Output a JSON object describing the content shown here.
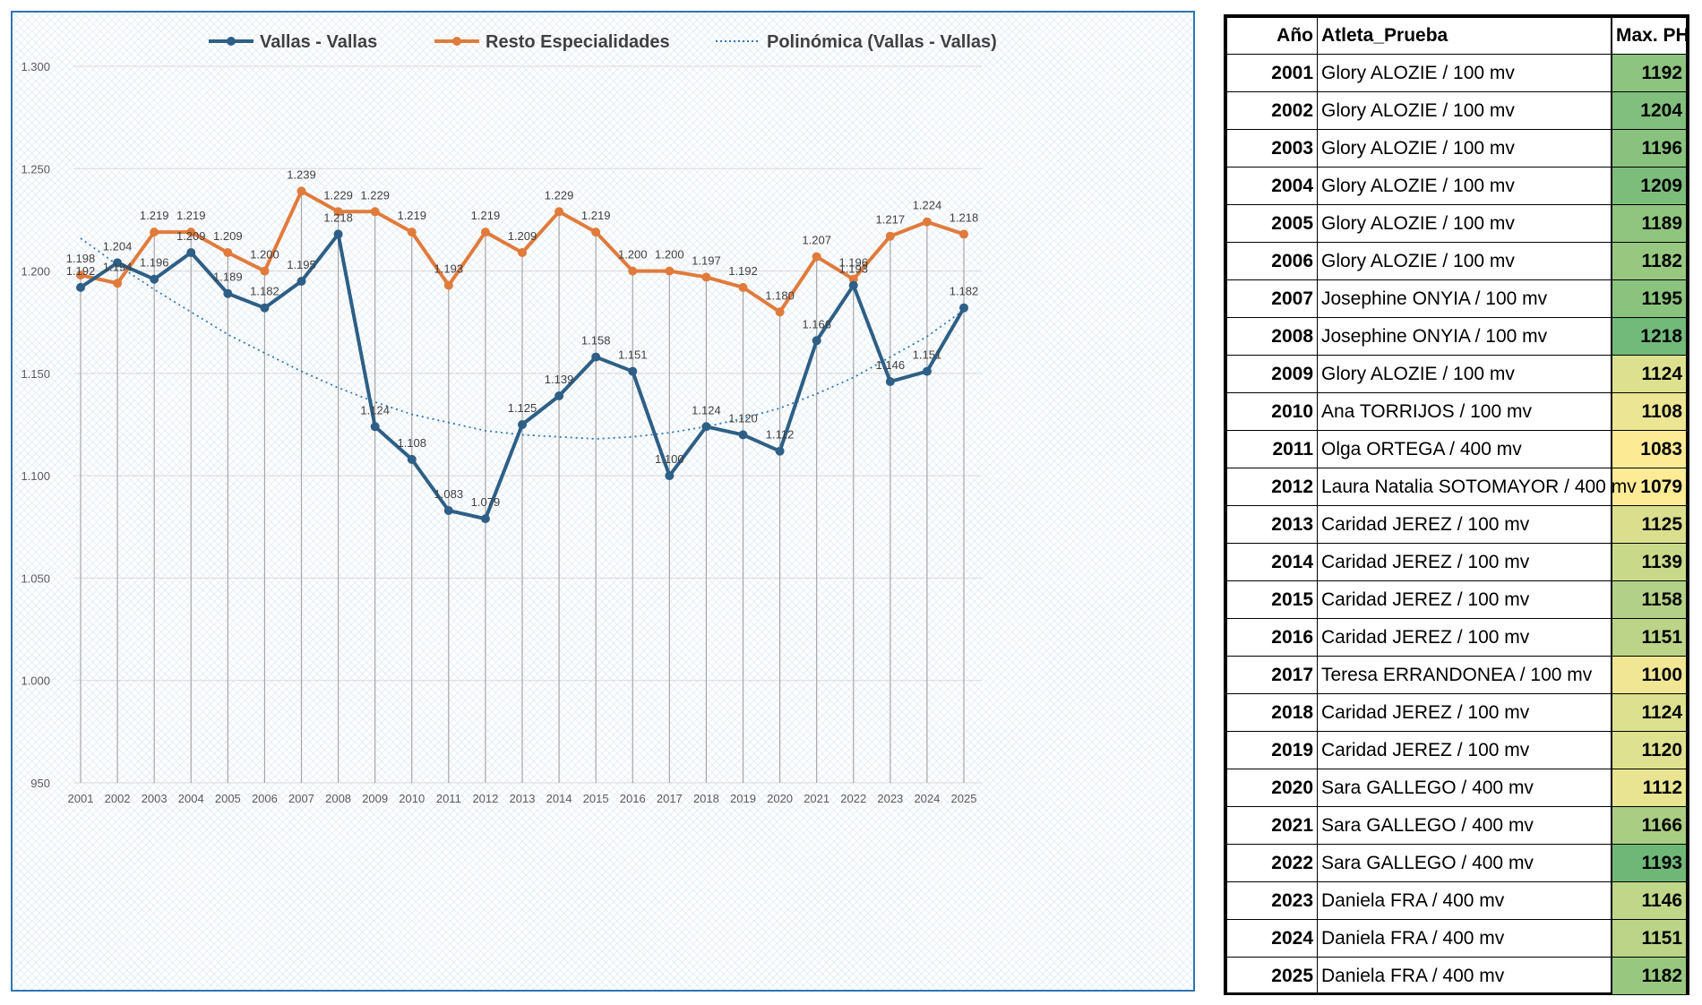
{
  "chart_data": {
    "type": "line",
    "categories": [
      "2001",
      "2002",
      "2003",
      "2004",
      "2005",
      "2006",
      "2007",
      "2008",
      "2009",
      "2010",
      "2011",
      "2012",
      "2013",
      "2014",
      "2015",
      "2016",
      "2017",
      "2018",
      "2019",
      "2020",
      "2021",
      "2022",
      "2023",
      "2024",
      "2025"
    ],
    "series": [
      {
        "name": "Vallas - Vallas",
        "color": "#2e5f86",
        "values": [
          1192,
          1204,
          1196,
          1209,
          1189,
          1182,
          1195,
          1218,
          1124,
          1108,
          1083,
          1079,
          1125,
          1139,
          1158,
          1151,
          1100,
          1124,
          1120,
          1112,
          1166,
          1193,
          1146,
          1151,
          1182
        ],
        "labels": [
          "1.192",
          "1.204",
          "1.196",
          "1.209",
          "1.189",
          "1.182",
          "1.195",
          "1.218",
          "1.124",
          "1.108",
          "1.083",
          "1.079",
          "1.125",
          "1.139",
          "1.158",
          "1.151",
          "1.100",
          "1.124",
          "1.120",
          "1.112",
          "1.166",
          "1.193",
          "1.146",
          "1.151",
          "1.182"
        ]
      },
      {
        "name": "Resto Especialidades",
        "color": "#e07b3c",
        "values": [
          1198,
          1194,
          1219,
          1219,
          1209,
          1200,
          1239,
          1229,
          1229,
          1219,
          1193,
          1219,
          1209,
          1229,
          1219,
          1200,
          1200,
          1197,
          1192,
          1180,
          1207,
          1196,
          1217,
          1224,
          1218
        ],
        "labels": [
          "1.198",
          "1.194",
          "1.219",
          "1.219",
          "1.209",
          "1.200",
          "1.239",
          "1.229",
          "1.229",
          "1.219",
          "1.193",
          "1.219",
          "1.209",
          "1.229",
          "1.219",
          "1.200",
          "1.200",
          "1.197",
          "1.192",
          "1.180",
          "1.207",
          "1.196",
          "1.217",
          "1.224",
          "1.218"
        ]
      },
      {
        "name": "Polinómica (Vallas - Vallas)",
        "type": "trendline",
        "style": "dotted",
        "color": "#2e75b6",
        "values": [
          1216,
          1203,
          1191,
          1180,
          1169,
          1160,
          1151,
          1143,
          1136,
          1130,
          1126,
          1122,
          1120,
          1119,
          1118,
          1119,
          1121,
          1124,
          1128,
          1133,
          1140,
          1148,
          1158,
          1168,
          1181
        ]
      }
    ],
    "y_ticks": [
      950,
      1000,
      1050,
      1100,
      1150,
      1200,
      1250,
      1300
    ],
    "y_tick_labels": [
      "950",
      "1.000",
      "1.050",
      "1.100",
      "1.150",
      "1.200",
      "1.250",
      "1.300"
    ],
    "ylim": [
      950,
      1300
    ],
    "legend_position": "top-center",
    "grid": true
  },
  "table": {
    "headers": {
      "year": "Año",
      "athlete": "Atleta_Prueba",
      "max": "Max. PH"
    },
    "rows": [
      {
        "year": "2001",
        "athlete": "Glory ALOZIE / 100 mv",
        "max": "1192",
        "color": "#8dc47f"
      },
      {
        "year": "2002",
        "athlete": "Glory ALOZIE / 100 mv",
        "max": "1204",
        "color": "#81bf7c"
      },
      {
        "year": "2003",
        "athlete": "Glory ALOZIE / 100 mv",
        "max": "1196",
        "color": "#89c27e"
      },
      {
        "year": "2004",
        "athlete": "Glory ALOZIE / 100 mv",
        "max": "1209",
        "color": "#7cbd7b"
      },
      {
        "year": "2005",
        "athlete": "Glory ALOZIE / 100 mv",
        "max": "1189",
        "color": "#90c57f"
      },
      {
        "year": "2006",
        "athlete": "Glory ALOZIE / 100 mv",
        "max": "1182",
        "color": "#98c880"
      },
      {
        "year": "2007",
        "athlete": "Josephine ONYIA / 100 mv",
        "max": "1195",
        "color": "#8ac37e"
      },
      {
        "year": "2008",
        "athlete": "Josephine ONYIA / 100 mv",
        "max": "1218",
        "color": "#72ba79"
      },
      {
        "year": "2009",
        "athlete": "Glory ALOZIE / 100 mv",
        "max": "1124",
        "color": "#dbe18f"
      },
      {
        "year": "2010",
        "athlete": "Ana TORRIJOS / 100 mv",
        "max": "1108",
        "color": "#ece593"
      },
      {
        "year": "2011",
        "athlete": "Olga ORTEGA / 400 mv",
        "max": "1083",
        "color": "#fdea95"
      },
      {
        "year": "2012",
        "athlete": "Laura Natalia SOTOMAYOR / 400 mv",
        "max": "1079",
        "color": "#feeb96"
      },
      {
        "year": "2013",
        "athlete": "Caridad JEREZ / 100 mv",
        "max": "1125",
        "color": "#dadf8e"
      },
      {
        "year": "2014",
        "athlete": "Caridad JEREZ / 100 mv",
        "max": "1139",
        "color": "#c9d98a"
      },
      {
        "year": "2015",
        "athlete": "Caridad JEREZ / 100 mv",
        "max": "1158",
        "color": "#b3d186"
      },
      {
        "year": "2016",
        "athlete": "Caridad JEREZ / 100 mv",
        "max": "1151",
        "color": "#bbd487"
      },
      {
        "year": "2017",
        "athlete": "Teresa ERRANDONEA / 100 mv",
        "max": "1100",
        "color": "#f0e694"
      },
      {
        "year": "2018",
        "athlete": "Caridad JEREZ / 100 mv",
        "max": "1124",
        "color": "#dbe18f"
      },
      {
        "year": "2019",
        "athlete": "Caridad JEREZ / 100 mv",
        "max": "1120",
        "color": "#dee18f"
      },
      {
        "year": "2020",
        "athlete": "Sara GALLEGO / 400 mv",
        "max": "1112",
        "color": "#e8e491"
      },
      {
        "year": "2021",
        "athlete": "Sara GALLEGO / 400 mv",
        "max": "1166",
        "color": "#aacd84"
      },
      {
        "year": "2022",
        "athlete": "Sara GALLEGO / 400 mv",
        "max": "1193",
        "color": "#6fb777"
      },
      {
        "year": "2023",
        "athlete": "Daniela FRA / 400 mv",
        "max": "1146",
        "color": "#c0d688"
      },
      {
        "year": "2024",
        "athlete": "Daniela FRA / 400 mv",
        "max": "1151",
        "color": "#bbd487"
      },
      {
        "year": "2025",
        "athlete": "Daniela FRA / 400 mv",
        "max": "1182",
        "color": "#98c880"
      }
    ]
  }
}
